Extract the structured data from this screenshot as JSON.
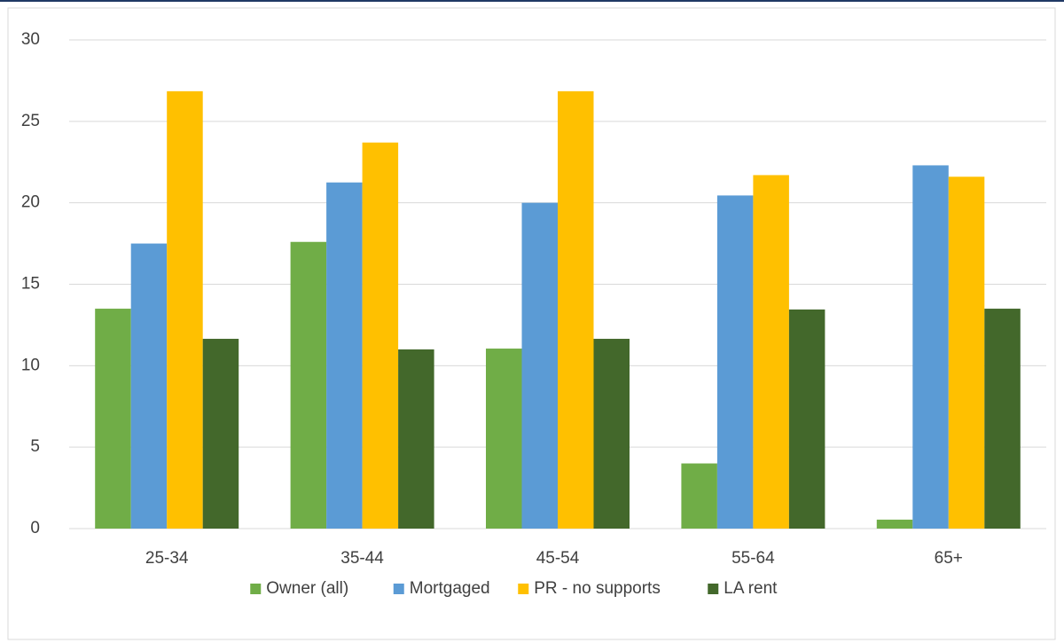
{
  "chart_data": {
    "type": "bar",
    "categories": [
      "25-34",
      "35-44",
      "45-54",
      "55-64",
      "65+"
    ],
    "series": [
      {
        "name": "Owner (all)",
        "color": "#70ad47",
        "values": [
          13.5,
          17.6,
          11.05,
          4.0,
          0.55
        ]
      },
      {
        "name": "Mortgaged",
        "color": "#5b9bd5",
        "values": [
          17.5,
          21.25,
          20.0,
          20.45,
          22.3
        ]
      },
      {
        "name": "PR - no supports",
        "color": "#ffc000",
        "values": [
          26.85,
          23.7,
          26.85,
          21.7,
          21.6
        ]
      },
      {
        "name": "LA rent",
        "color": "#43682b",
        "values": [
          11.65,
          11.0,
          11.65,
          13.45,
          13.5
        ]
      }
    ],
    "ylim": [
      0,
      30
    ],
    "yticks": [
      0,
      5,
      10,
      15,
      20,
      25,
      30
    ],
    "grid": true,
    "legend": "bottom"
  }
}
